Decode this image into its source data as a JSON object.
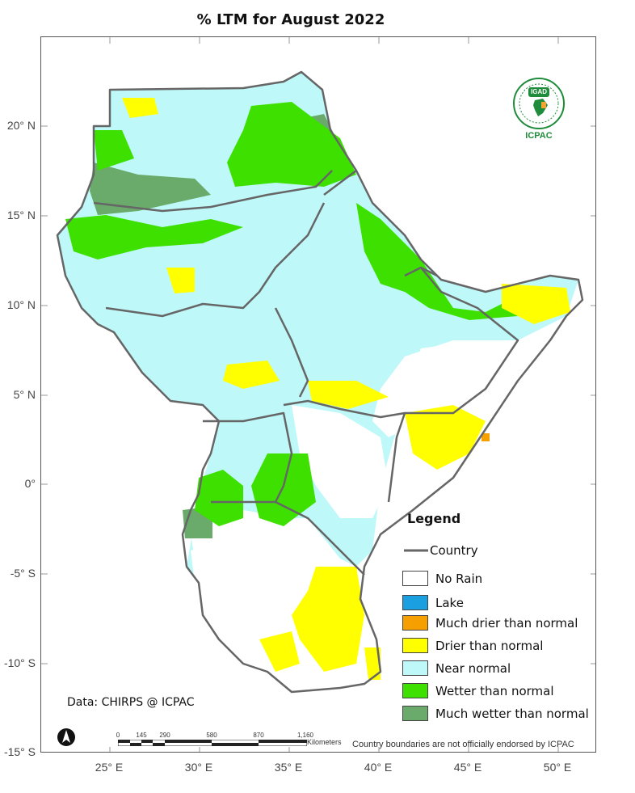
{
  "title": "% LTM  for  August 2022",
  "latitude_labels": [
    "20° N",
    "15° N",
    "10° N",
    "5° N",
    "0°",
    "-5° S",
    "-10° S",
    "-15° S"
  ],
  "longitude_labels": [
    "25° E",
    "30° E",
    "35° E",
    "40° E",
    "45° E",
    "50° E"
  ],
  "legend": {
    "title": "Legend",
    "items": [
      {
        "label": "Country",
        "kind": "line",
        "color": "#666666"
      },
      {
        "label": "No Rain",
        "kind": "swatch",
        "color": "#ffffff"
      },
      {
        "label": "Lake",
        "kind": "swatch",
        "color": "#1a9fe0"
      },
      {
        "label": "Much drier than normal",
        "kind": "swatch",
        "color": "#f5a000"
      },
      {
        "label": "Drier than normal",
        "kind": "swatch",
        "color": "#ffff00"
      },
      {
        "label": "Near normal",
        "kind": "swatch",
        "color": "#bff8f8"
      },
      {
        "label": "Wetter than normal",
        "kind": "swatch",
        "color": "#3ee000"
      },
      {
        "label": "Much wetter than normal",
        "kind": "swatch",
        "color": "#6aaa6a"
      }
    ]
  },
  "credit": "Data: CHIRPS @ ICPAC",
  "scale_bar": {
    "ticks": [
      "0",
      "145",
      "290",
      "580",
      "870",
      "1,160"
    ],
    "unit": "Kilometers"
  },
  "disclaimer": "Country boundaries are not officially endorsed by ICPAC",
  "logo": {
    "badge_text": "IGAD",
    "caption": "ICPAC",
    "icon": "igad-laurel-africa-icon"
  },
  "north_arrow": {
    "icon": "north-arrow-icon"
  },
  "colors": {
    "no_rain": "#ffffff",
    "lake": "#1a9fe0",
    "much_drier": "#f5a000",
    "drier": "#ffff00",
    "near_normal": "#bff8f8",
    "wetter": "#3ee000",
    "much_wetter": "#6aaa6a",
    "border": "#666666"
  }
}
